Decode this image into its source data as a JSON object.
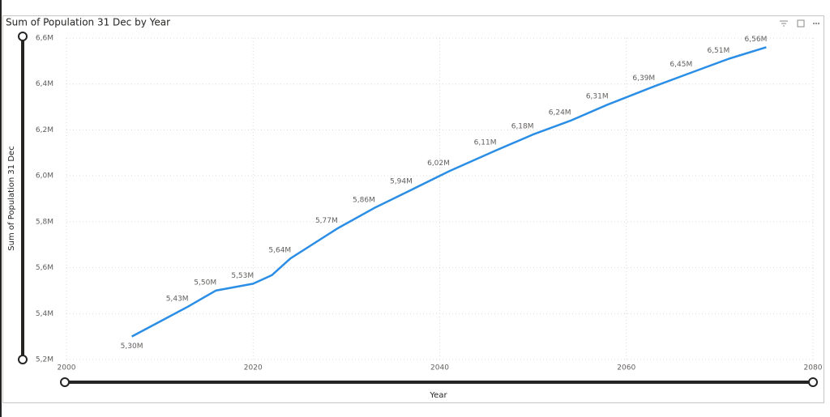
{
  "chart_data": {
    "type": "line",
    "title": "Sum of Population 31 Dec by Year",
    "x_label": "Year",
    "y_label": "Sum of Population 31 Dec",
    "x": [
      2007,
      2013,
      2016,
      2020,
      2022,
      2024,
      2029,
      2033,
      2037,
      2041,
      2046,
      2050,
      2054,
      2058,
      2063,
      2067,
      2071,
      2075
    ],
    "series": [
      {
        "name": "Sum of Population 31 Dec",
        "color": "#2b8ee6",
        "values": [
          5300000,
          5430000,
          5500000,
          5530000,
          5567000,
          5640000,
          5770000,
          5860000,
          5940000,
          6020000,
          6110000,
          6180000,
          6240000,
          6310000,
          6390000,
          6450000,
          6510000,
          6560000
        ],
        "value_labels": [
          "5,30M",
          "5,43M",
          "5,50M",
          "5,53M",
          null,
          "5,64M",
          "5,77M",
          "5,86M",
          "5,94M",
          "6,02M",
          "6,11M",
          "6,18M",
          "6,24M",
          "6,31M",
          "6,39M",
          "6,45M",
          "6,51M",
          "6,56M"
        ]
      }
    ],
    "xlim": [
      2000,
      2080
    ],
    "xticks": [
      2000,
      2020,
      2040,
      2060,
      2080
    ],
    "ylim": [
      5200000,
      6600000
    ],
    "yticks": [
      {
        "value": 5200000,
        "label": "5,2M"
      },
      {
        "value": 5400000,
        "label": "5,4M"
      },
      {
        "value": 5600000,
        "label": "5,6M"
      },
      {
        "value": 5800000,
        "label": "5,8M"
      },
      {
        "value": 6000000,
        "label": "6,0M"
      },
      {
        "value": 6200000,
        "label": "6,2M"
      },
      {
        "value": 6400000,
        "label": "6,4M"
      },
      {
        "value": 6600000,
        "label": "6,6M"
      }
    ],
    "grid": true
  }
}
